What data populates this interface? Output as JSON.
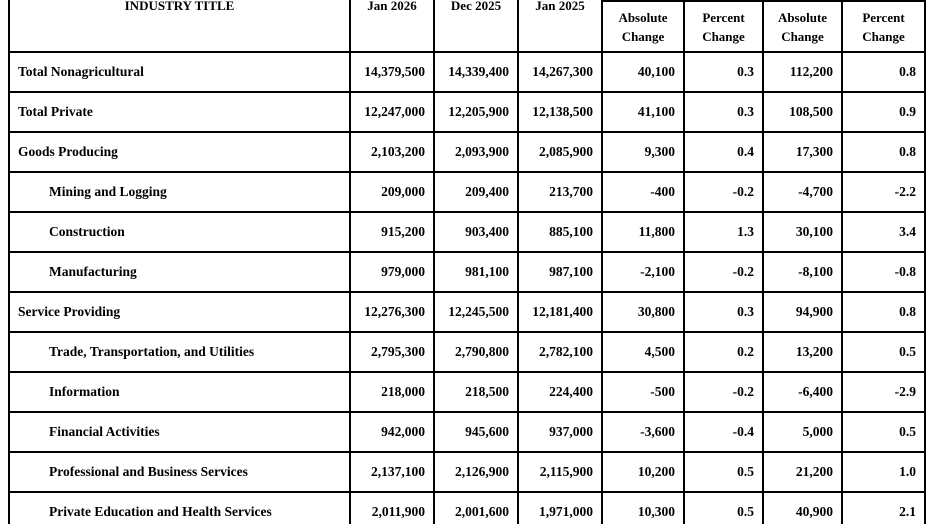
{
  "table": {
    "headers": {
      "industry_title": "INDUSTRY TITLE",
      "jan_2026": "Jan 2026",
      "dec_2025": "Dec 2025",
      "jan_2025": "Jan 2025",
      "absolute_change": "Absolute Change",
      "percent_change": "Percent Change"
    },
    "rows": [
      {
        "industry": "Total Nonagricultural",
        "indent": false,
        "values": [
          "14,379,500",
          "14,339,400",
          "14,267,300",
          "40,100",
          "0.3",
          "112,200",
          "0.8"
        ]
      },
      {
        "industry": "Total Private",
        "indent": false,
        "values": [
          "12,247,000",
          "12,205,900",
          "12,138,500",
          "41,100",
          "0.3",
          "108,500",
          "0.9"
        ]
      },
      {
        "industry": "Goods Producing",
        "indent": false,
        "values": [
          "2,103,200",
          "2,093,900",
          "2,085,900",
          "9,300",
          "0.4",
          "17,300",
          "0.8"
        ]
      },
      {
        "industry": "Mining and Logging",
        "indent": true,
        "values": [
          "209,000",
          "209,400",
          "213,700",
          "-400",
          "-0.2",
          "-4,700",
          "-2.2"
        ]
      },
      {
        "industry": "Construction",
        "indent": true,
        "values": [
          "915,200",
          "903,400",
          "885,100",
          "11,800",
          "1.3",
          "30,100",
          "3.4"
        ]
      },
      {
        "industry": "Manufacturing",
        "indent": true,
        "values": [
          "979,000",
          "981,100",
          "987,100",
          "-2,100",
          "-0.2",
          "-8,100",
          "-0.8"
        ]
      },
      {
        "industry": "Service Providing",
        "indent": false,
        "values": [
          "12,276,300",
          "12,245,500",
          "12,181,400",
          "30,800",
          "0.3",
          "94,900",
          "0.8"
        ]
      },
      {
        "industry": "Trade, Transportation, and Utilities",
        "indent": true,
        "values": [
          "2,795,300",
          "2,790,800",
          "2,782,100",
          "4,500",
          "0.2",
          "13,200",
          "0.5"
        ]
      },
      {
        "industry": "Information",
        "indent": true,
        "values": [
          "218,000",
          "218,500",
          "224,400",
          "-500",
          "-0.2",
          "-6,400",
          "-2.9"
        ]
      },
      {
        "industry": "Financial Activities",
        "indent": true,
        "values": [
          "942,000",
          "945,600",
          "937,000",
          "-3,600",
          "-0.4",
          "5,000",
          "0.5"
        ]
      },
      {
        "industry": "Professional and Business Services",
        "indent": true,
        "values": [
          "2,137,100",
          "2,126,900",
          "2,115,900",
          "10,200",
          "0.5",
          "21,200",
          "1.0"
        ]
      },
      {
        "industry": "Private Education and Health Services",
        "indent": true,
        "values": [
          "2,011,900",
          "2,001,600",
          "1,971,000",
          "10,300",
          "0.5",
          "40,900",
          "2.1"
        ]
      }
    ]
  }
}
